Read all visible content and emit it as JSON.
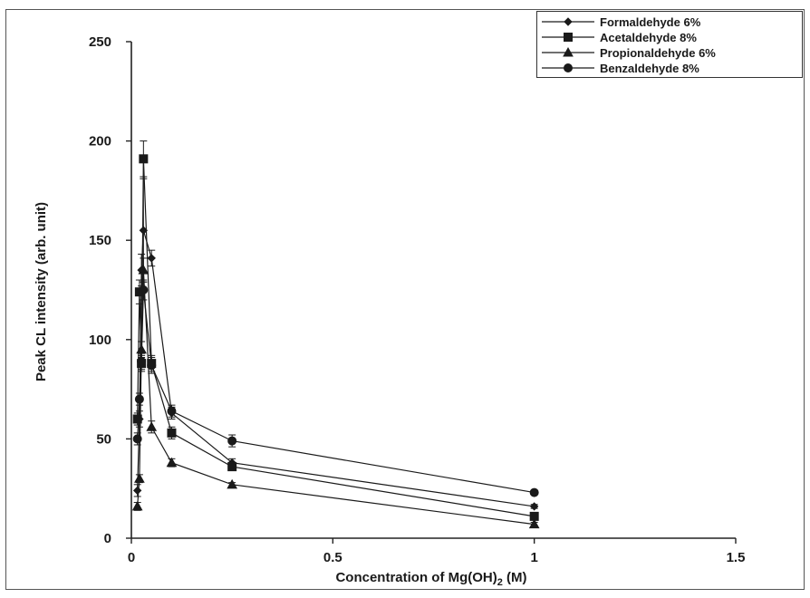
{
  "chart_data": {
    "type": "line",
    "title": "",
    "xlabel": "Concentration of Mg(OH)",
    "xlabel_sub": "2",
    "xlabel_suffix": " (M)",
    "ylabel": "Peak CL intensity (arb. unit)",
    "xlim": [
      0,
      1.5
    ],
    "ylim": [
      0,
      250
    ],
    "x_ticks": [
      "0",
      "0.5",
      "1",
      "1.5"
    ],
    "y_ticks": [
      "0",
      "50",
      "100",
      "150",
      "200",
      "250"
    ],
    "x_tick_values": [
      0,
      0.5,
      1,
      1.5
    ],
    "y_tick_values": [
      0,
      50,
      100,
      150,
      200,
      250
    ],
    "grid": false,
    "legend_position": "top-right",
    "series": [
      {
        "name": "Formaldehyde 6%",
        "marker": "diamond",
        "x": [
          0.015,
          0.02,
          0.025,
          0.03,
          0.05,
          0.1,
          0.25,
          1.0
        ],
        "y": [
          24,
          60,
          135,
          155,
          141,
          63,
          38,
          16
        ],
        "err": [
          3,
          4,
          8,
          26,
          4,
          3,
          2,
          1
        ]
      },
      {
        "name": "Acetaldehyde 8%",
        "marker": "square",
        "x": [
          0.015,
          0.02,
          0.025,
          0.03,
          0.05,
          0.1,
          0.25,
          1.0
        ],
        "y": [
          60,
          124,
          88,
          191,
          88,
          53,
          36,
          11
        ],
        "err": [
          3,
          6,
          4,
          9,
          4,
          3,
          2,
          1
        ]
      },
      {
        "name": "Propionaldehyde 6%",
        "marker": "triangle",
        "x": [
          0.015,
          0.02,
          0.025,
          0.03,
          0.05,
          0.1,
          0.25,
          1.0
        ],
        "y": [
          16,
          30,
          95,
          135,
          56,
          38,
          27,
          7
        ],
        "err": [
          2,
          2,
          4,
          6,
          3,
          2,
          1,
          1
        ]
      },
      {
        "name": "Benzaldehyde 8%",
        "marker": "circle",
        "x": [
          0.015,
          0.02,
          0.025,
          0.03,
          0.05,
          0.1,
          0.25,
          1.0
        ],
        "y": [
          50,
          70,
          89,
          125,
          87,
          64,
          49,
          23
        ],
        "err": [
          3,
          3,
          4,
          5,
          4,
          3,
          3,
          1
        ]
      }
    ]
  }
}
